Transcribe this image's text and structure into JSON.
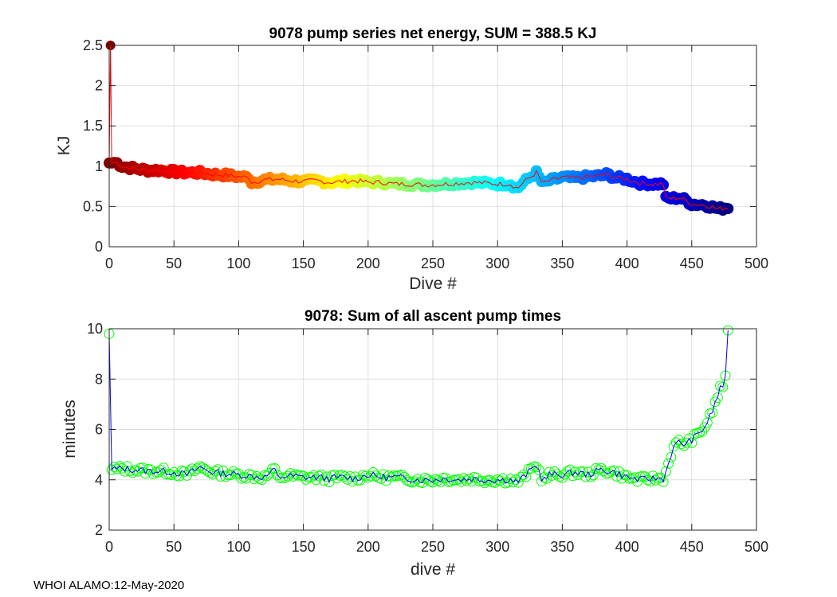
{
  "footer": "WHOI ALAMO:12-May-2020",
  "chart_data": [
    {
      "type": "scatter",
      "title": "9078 pump series net energy, SUM = 388.5 KJ",
      "xlabel": "Dive #",
      "ylabel": "KJ",
      "xlim": [
        0,
        500
      ],
      "ylim": [
        0,
        2.5
      ],
      "xticks": [
        0,
        50,
        100,
        150,
        200,
        250,
        300,
        350,
        400,
        450,
        500
      ],
      "yticks": [
        0,
        0.5,
        1,
        1.5,
        2,
        2.5
      ],
      "yticklabels": [
        "0",
        "0.5",
        "1",
        "1.5",
        "2",
        "2.5"
      ],
      "grid": true,
      "line_color": "#ff0000",
      "marker": "filled circles, colored by dive number (jet colormap reversed)",
      "x": [
        0,
        1,
        2,
        5,
        10,
        20,
        30,
        40,
        50,
        60,
        70,
        80,
        90,
        100,
        108,
        110,
        120,
        130,
        140,
        150,
        160,
        170,
        180,
        190,
        200,
        210,
        220,
        230,
        240,
        250,
        260,
        270,
        280,
        290,
        300,
        310,
        315,
        320,
        330,
        335,
        340,
        350,
        360,
        370,
        380,
        385,
        390,
        400,
        410,
        420,
        428,
        430,
        435,
        440,
        445,
        450,
        460,
        465,
        470,
        475,
        478
      ],
      "y": [
        1.04,
        2.5,
        1.04,
        1.05,
        1.0,
        0.97,
        0.95,
        0.95,
        0.93,
        0.92,
        0.92,
        0.9,
        0.89,
        0.87,
        0.86,
        0.8,
        0.83,
        0.84,
        0.82,
        0.81,
        0.82,
        0.8,
        0.81,
        0.82,
        0.8,
        0.8,
        0.78,
        0.78,
        0.77,
        0.77,
        0.78,
        0.79,
        0.8,
        0.79,
        0.78,
        0.78,
        0.72,
        0.8,
        0.92,
        0.78,
        0.82,
        0.86,
        0.85,
        0.87,
        0.88,
        0.9,
        0.86,
        0.84,
        0.79,
        0.78,
        0.78,
        0.6,
        0.6,
        0.61,
        0.58,
        0.53,
        0.52,
        0.5,
        0.47,
        0.48,
        0.49
      ]
    },
    {
      "type": "line",
      "title": "9078: Sum of all ascent pump times",
      "xlabel": "dive #",
      "ylabel": "minutes",
      "xlim": [
        0,
        500
      ],
      "ylim": [
        2,
        10
      ],
      "xticks": [
        0,
        50,
        100,
        150,
        200,
        250,
        300,
        350,
        400,
        450,
        500
      ],
      "yticks": [
        2,
        4,
        6,
        8,
        10
      ],
      "yticklabels": [
        "2",
        "4",
        "6",
        "8",
        "10"
      ],
      "grid": true,
      "line_color": "#0000ff",
      "marker_color": "#00ff00",
      "marker": "open circles",
      "x": [
        0,
        1,
        3,
        5,
        10,
        20,
        30,
        40,
        50,
        60,
        70,
        80,
        90,
        100,
        110,
        120,
        128,
        130,
        140,
        150,
        160,
        170,
        180,
        190,
        200,
        210,
        220,
        230,
        240,
        250,
        260,
        270,
        280,
        290,
        300,
        310,
        315,
        320,
        330,
        335,
        340,
        350,
        360,
        370,
        380,
        390,
        400,
        410,
        420,
        428,
        430,
        435,
        440,
        445,
        450,
        455,
        460,
        465,
        470,
        473,
        475,
        477,
        478
      ],
      "y": [
        9.8,
        4.3,
        4.5,
        4.4,
        4.45,
        4.4,
        4.35,
        4.35,
        4.3,
        4.2,
        4.5,
        4.3,
        4.25,
        4.2,
        4.15,
        4.1,
        4.4,
        4.1,
        4.15,
        4.1,
        4.1,
        4.05,
        4.1,
        4.05,
        4.2,
        4.1,
        4.1,
        4.05,
        4.0,
        4.0,
        4.05,
        4.0,
        4.05,
        4.0,
        4.0,
        4.0,
        3.9,
        4.1,
        4.6,
        3.95,
        4.2,
        4.2,
        4.3,
        4.2,
        4.4,
        4.3,
        4.1,
        4.0,
        4.05,
        4.05,
        4.3,
        5.2,
        5.5,
        5.4,
        5.6,
        5.8,
        6.1,
        6.6,
        7.3,
        7.9,
        7.6,
        8.4,
        9.8
      ]
    }
  ]
}
